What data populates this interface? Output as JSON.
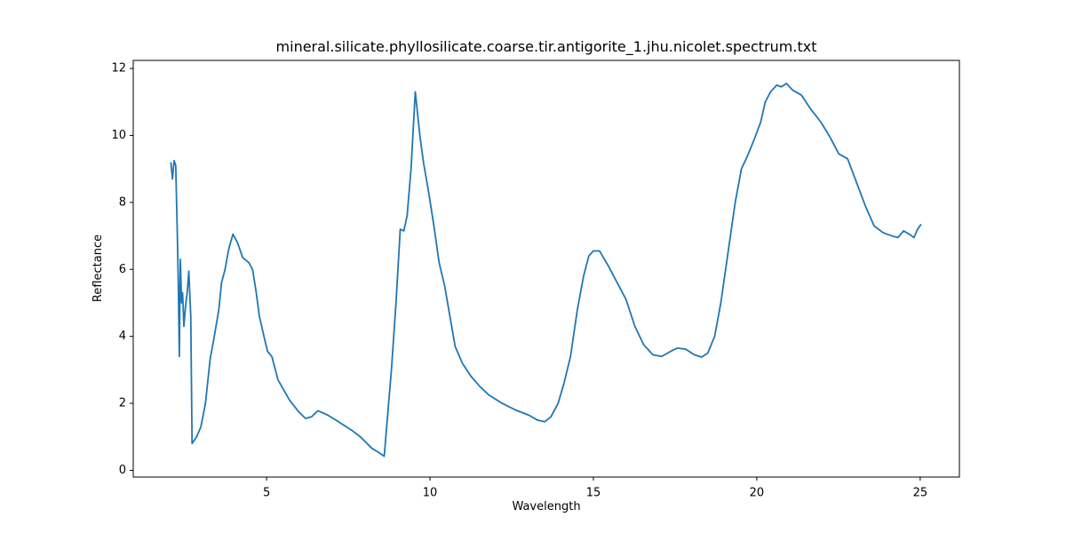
{
  "chart_data": {
    "type": "line",
    "title": "mineral.silicate.phyllosilicate.coarse.tir.antigorite_1.jhu.nicolet.spectrum.txt",
    "xlabel": "Wavelength",
    "ylabel": "Reflectance",
    "color": "#1f77b4",
    "x": [
      2.07,
      2.12,
      2.17,
      2.22,
      2.27,
      2.3,
      2.33,
      2.36,
      2.4,
      2.43,
      2.47,
      2.52,
      2.57,
      2.62,
      2.68,
      2.72,
      2.86,
      2.99,
      3.13,
      3.27,
      3.4,
      3.54,
      3.62,
      3.73,
      3.84,
      3.97,
      4.11,
      4.27,
      4.46,
      4.57,
      4.67,
      4.78,
      4.92,
      5.03,
      5.16,
      5.35,
      5.7,
      5.98,
      6.19,
      6.38,
      6.57,
      6.87,
      7.2,
      7.6,
      7.87,
      8.23,
      8.41,
      8.6,
      8.82,
      8.96,
      9.09,
      9.2,
      9.3,
      9.42,
      9.55,
      9.69,
      9.8,
      9.96,
      10.12,
      10.28,
      10.45,
      10.61,
      10.77,
      10.99,
      11.26,
      11.53,
      11.8,
      12.21,
      12.62,
      13.02,
      13.29,
      13.51,
      13.7,
      13.92,
      14.1,
      14.3,
      14.51,
      14.7,
      14.86,
      15.0,
      15.19,
      15.46,
      15.73,
      16.0,
      16.27,
      16.54,
      16.82,
      17.09,
      17.36,
      17.57,
      17.82,
      18.09,
      18.31,
      18.5,
      18.71,
      18.9,
      19.12,
      19.34,
      19.53,
      19.72,
      19.93,
      20.12,
      20.26,
      20.42,
      20.61,
      20.75,
      20.91,
      21.1,
      21.37,
      21.64,
      21.96,
      22.24,
      22.51,
      22.78,
      23.05,
      23.32,
      23.59,
      23.86,
      24.13,
      24.32,
      24.49,
      24.67,
      24.81,
      24.92,
      25.03
    ],
    "values": [
      9.2,
      8.7,
      9.25,
      9.1,
      7.0,
      5.5,
      3.4,
      6.3,
      5.0,
      5.3,
      4.3,
      4.9,
      5.3,
      5.95,
      4.6,
      0.8,
      1.0,
      1.3,
      2.0,
      3.3,
      4.0,
      4.8,
      5.6,
      6.0,
      6.6,
      7.05,
      6.8,
      6.35,
      6.2,
      6.0,
      5.4,
      4.6,
      4.0,
      3.55,
      3.4,
      2.7,
      2.1,
      1.75,
      1.55,
      1.6,
      1.78,
      1.65,
      1.45,
      1.2,
      1.0,
      0.65,
      0.55,
      0.42,
      3.0,
      5.0,
      7.2,
      7.15,
      7.6,
      9.0,
      11.3,
      10.0,
      9.2,
      8.3,
      7.3,
      6.2,
      5.5,
      4.6,
      3.7,
      3.2,
      2.8,
      2.5,
      2.25,
      2.0,
      1.8,
      1.65,
      1.5,
      1.45,
      1.6,
      2.0,
      2.6,
      3.4,
      4.8,
      5.8,
      6.4,
      6.55,
      6.55,
      6.1,
      5.6,
      5.1,
      4.3,
      3.75,
      3.45,
      3.4,
      3.55,
      3.65,
      3.62,
      3.45,
      3.38,
      3.5,
      4.0,
      5.0,
      6.5,
      8.0,
      9.0,
      9.4,
      9.9,
      10.4,
      11.0,
      11.3,
      11.5,
      11.45,
      11.55,
      11.35,
      11.2,
      10.8,
      10.4,
      9.95,
      9.45,
      9.3,
      8.6,
      7.9,
      7.3,
      7.1,
      7.0,
      6.95,
      7.15,
      7.05,
      6.95,
      7.2,
      7.35
    ],
    "xlim": [
      0.92,
      26.2
    ],
    "ylim": [
      -0.2,
      12.24
    ],
    "xticks": [
      5,
      10,
      15,
      20,
      25
    ],
    "yticks": [
      0,
      2,
      4,
      6,
      8,
      10,
      12
    ]
  }
}
